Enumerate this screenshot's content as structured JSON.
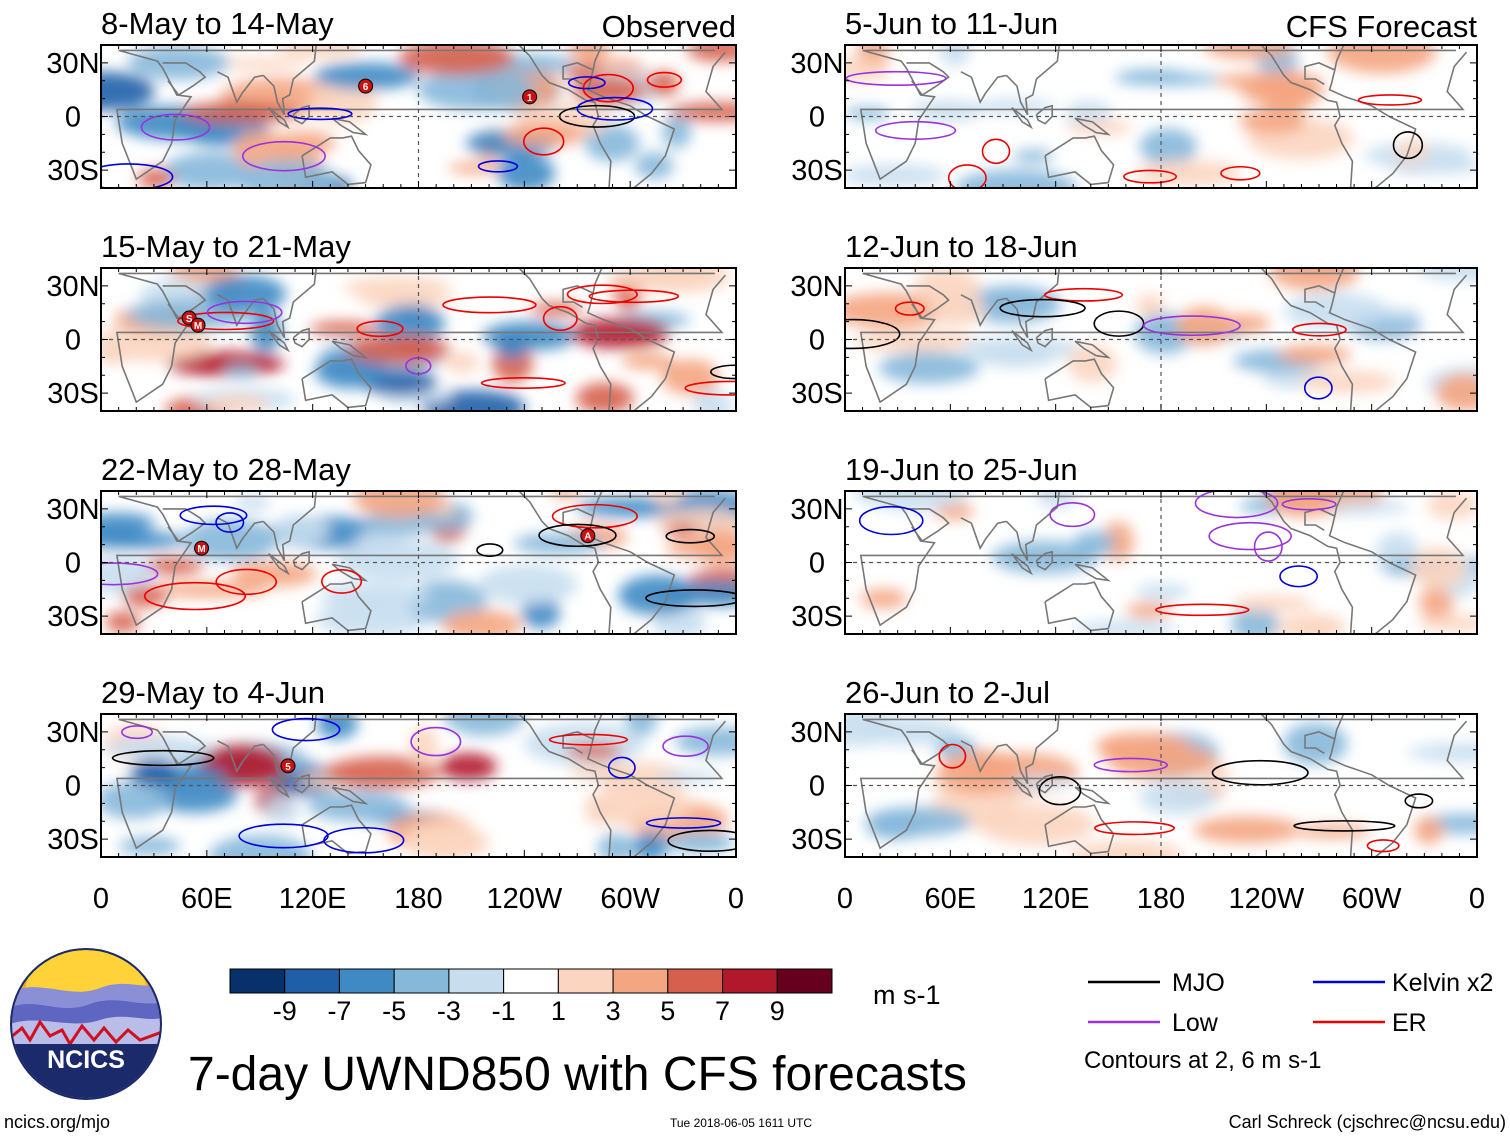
{
  "figure_title": "7-day UWND850 with CFS forecasts",
  "observed_label": "Observed",
  "forecast_label": "CFS Forecast",
  "lat_labels": [
    "30N",
    "0",
    "30S"
  ],
  "lon_labels": [
    "0",
    "60E",
    "120E",
    "180",
    "120W",
    "60W",
    "0"
  ],
  "panels_observed": [
    {
      "date": "8-May to 14-May",
      "storms": [
        "6",
        "1"
      ]
    },
    {
      "date": "15-May to 21-May",
      "storms": [
        "S",
        "M"
      ]
    },
    {
      "date": "22-May to 28-May",
      "storms": [
        "M",
        "A"
      ]
    },
    {
      "date": "29-May to 4-Jun",
      "storms": [
        "5"
      ]
    }
  ],
  "panels_forecast": [
    {
      "date": "5-Jun to 11-Jun"
    },
    {
      "date": "12-Jun to 18-Jun"
    },
    {
      "date": "19-Jun to 25-Jun"
    },
    {
      "date": "26-Jun to 2-Jul"
    }
  ],
  "colorbar": {
    "tick_labels": [
      "-9",
      "-7",
      "-5",
      "-3",
      "-1",
      "1",
      "3",
      "5",
      "7",
      "9"
    ],
    "units": "m s-1",
    "colors": [
      "#08306b",
      "#1f5fa8",
      "#3f8ac4",
      "#86b8da",
      "#c8deef",
      "#ffffff",
      "#fbd5c0",
      "#f4a582",
      "#d6604d",
      "#b2182b",
      "#67001f"
    ]
  },
  "legend": {
    "items": [
      {
        "label": "MJO",
        "color": "#000000"
      },
      {
        "label": "Kelvin x2",
        "color": "#0000dd"
      },
      {
        "label": "Low",
        "color": "#9933dd"
      },
      {
        "label": "ER",
        "color": "#ee0000"
      }
    ],
    "note": "Contours at 2, 6 m s-1"
  },
  "logo_text": "NCICS",
  "footer": {
    "url": "ncics.org/mjo",
    "timestamp": "Tue 2018-06-05 1611 UTC",
    "credit": "Carl Schreck (cjschrec@ncsu.edu)"
  }
}
